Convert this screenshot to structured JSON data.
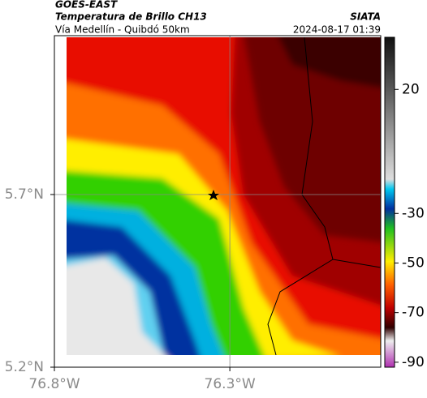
{
  "header": {
    "source": "GOES-EAST",
    "title": "Temperatura de Brillo CH13",
    "subtitle": "Vía Medellín - Quibdó 50km",
    "agency": "SIATA",
    "datetime": "2024-08-17 01:39"
  },
  "map": {
    "xlim": [
      -76.8,
      -75.87
    ],
    "ylim": [
      5.2,
      6.16
    ],
    "xticks": [
      {
        "value": -76.8,
        "label": "76.8°W"
      },
      {
        "value": -76.3,
        "label": "76.3°W"
      }
    ],
    "yticks": [
      {
        "value": 5.7,
        "label": "5.7°N"
      },
      {
        "value": 5.2,
        "label": "5.2°N"
      }
    ],
    "grid": true
  },
  "colorbar": {
    "lim": [
      -92,
      41
    ],
    "ticks": [
      20,
      -30,
      -50,
      -70,
      -90
    ]
  }
}
